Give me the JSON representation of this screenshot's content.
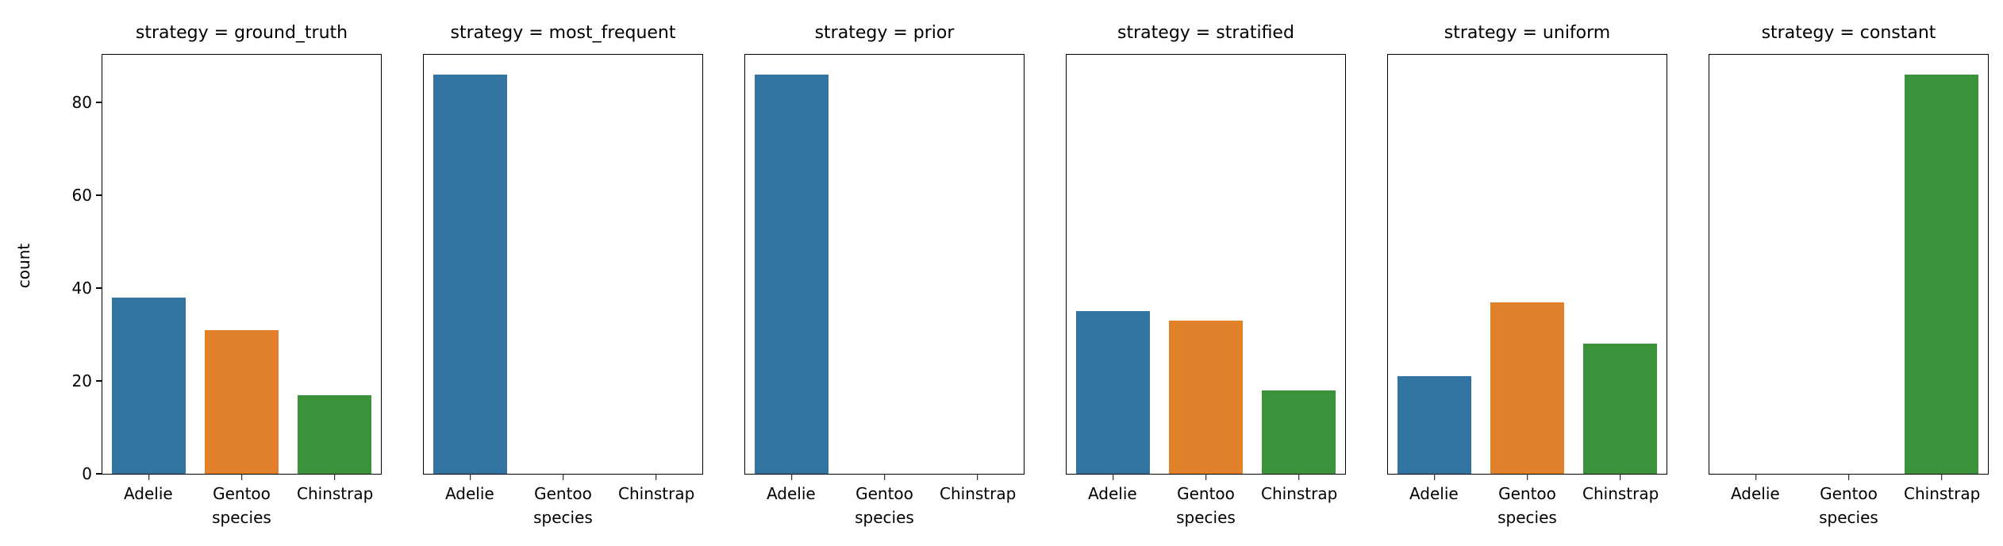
{
  "chart_data": {
    "type": "bar",
    "faceted_by": "strategy",
    "title": "",
    "xlabel": "species",
    "ylabel": "count",
    "categories": [
      "Adelie",
      "Gentoo",
      "Chinstrap"
    ],
    "yticks": [
      0,
      20,
      40,
      60,
      80
    ],
    "ylim": [
      0,
      90.3
    ],
    "grid": false,
    "legend": "none",
    "colors": {
      "Adelie": "#3274a1",
      "Gentoo": "#e1812c",
      "Chinstrap": "#3a923a"
    },
    "facets": [
      {
        "strategy": "ground_truth",
        "title": "strategy = ground_truth",
        "values": [
          38,
          31,
          17
        ]
      },
      {
        "strategy": "most_frequent",
        "title": "strategy = most_frequent",
        "values": [
          86,
          0,
          0
        ]
      },
      {
        "strategy": "prior",
        "title": "strategy = prior",
        "values": [
          86,
          0,
          0
        ]
      },
      {
        "strategy": "stratified",
        "title": "strategy = stratified",
        "values": [
          35,
          33,
          18
        ]
      },
      {
        "strategy": "uniform",
        "title": "strategy = uniform",
        "values": [
          21,
          37,
          28
        ]
      },
      {
        "strategy": "constant",
        "title": "strategy = constant",
        "values": [
          0,
          0,
          86
        ]
      }
    ]
  }
}
